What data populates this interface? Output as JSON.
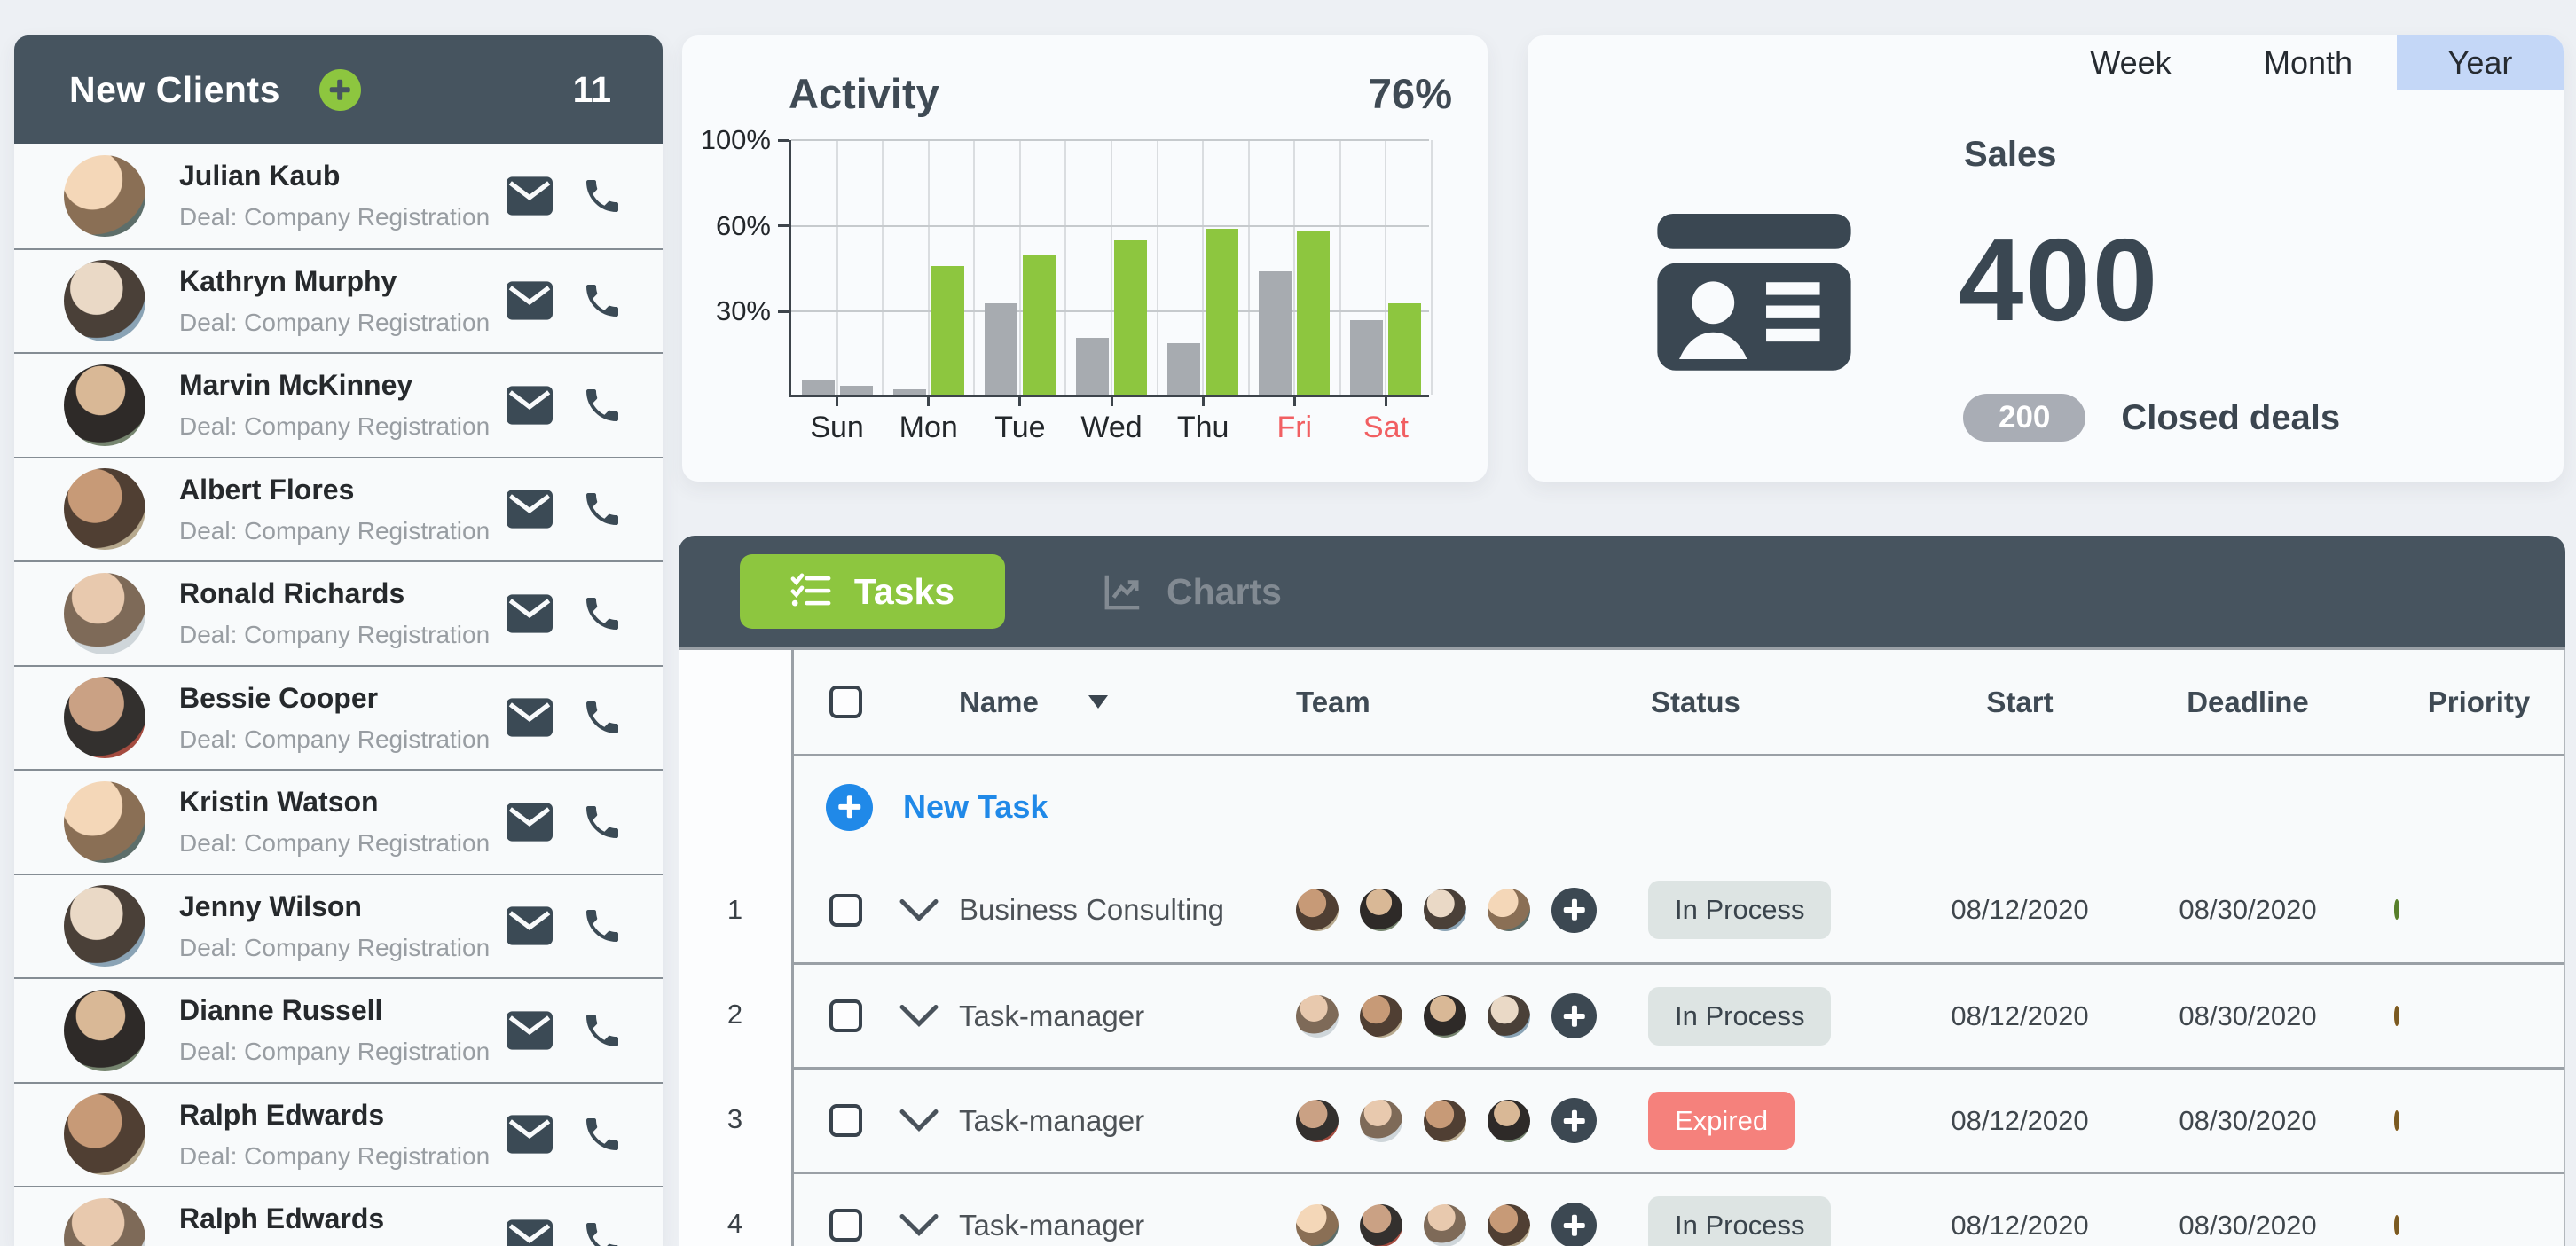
{
  "theme": {
    "dark_slate": "#46545f",
    "accent_green": "#8dc63f",
    "accent_blue": "#2089e8",
    "active_tab_blue": "#c4d7f7",
    "expired_red": "#f5817c",
    "weekend_red": "#f15f62",
    "priority_orange": "#f7941d",
    "priority_green": "#8cc63e",
    "gray_bar": "#a7abb0",
    "page_bg": "#edf0f4"
  },
  "sidebar": {
    "title": "New Clients",
    "count": "11",
    "deal_label": "Deal: Company Registration",
    "clients": [
      {
        "name": "Julian Kaub"
      },
      {
        "name": "Kathryn Murphy"
      },
      {
        "name": "Marvin McKinney"
      },
      {
        "name": "Albert Flores"
      },
      {
        "name": "Ronald Richards"
      },
      {
        "name": "Bessie Cooper"
      },
      {
        "name": "Kristin Watson"
      },
      {
        "name": "Jenny Wilson"
      },
      {
        "name": "Dianne Russell"
      },
      {
        "name": "Ralph Edwards"
      },
      {
        "name": "Ralph Edwards"
      }
    ]
  },
  "activity": {
    "title": "Activity",
    "value": "76%"
  },
  "chart_data": {
    "type": "bar",
    "title": "Activity",
    "annotation": "76%",
    "categories": [
      "Sun",
      "Mon",
      "Tue",
      "Wed",
      "Thu",
      "Fri",
      "Sat"
    ],
    "category_colors": [
      "#23272b",
      "#23272b",
      "#23272b",
      "#23272b",
      "#23272b",
      "#f15f62",
      "#f15f62"
    ],
    "series": [
      {
        "name": "secondary",
        "color": "#a7abb0",
        "values": [
          5,
          2,
          32,
          20,
          18,
          43,
          26
        ]
      },
      {
        "name": "primary",
        "color": "#8dc63f",
        "values": [
          3,
          45,
          49,
          54,
          58,
          57,
          32
        ],
        "point_colors": [
          "#a7abb0",
          null,
          null,
          null,
          null,
          null,
          null
        ]
      }
    ],
    "ylim": [
      0,
      100
    ],
    "y_ticks": [
      "30%",
      "60%",
      "100%"
    ],
    "y_scale_note": "non-linear: 0-30, 30-60, 60-100 occupy equal thirds of plot height",
    "grid": true,
    "legend": false
  },
  "sales": {
    "tabs": [
      {
        "label": "Week",
        "active": false
      },
      {
        "label": "Month",
        "active": false
      },
      {
        "label": "Year",
        "active": true
      }
    ],
    "label": "Sales",
    "value": "400",
    "badge": "200",
    "badge_label": "Closed deals"
  },
  "tasks": {
    "tabs": {
      "tasks": "Tasks",
      "charts": "Charts"
    },
    "new_task": "New Task",
    "columns": {
      "name": "Name",
      "team": "Team",
      "status": "Status",
      "start": "Start",
      "deadline": "Deadline",
      "priority": "Priority"
    },
    "rows": [
      {
        "num": "1",
        "name": "Business Consulting",
        "team_count": 4,
        "status": "In Process",
        "status_type": "process",
        "start": "08/12/2020",
        "deadline": "08/30/2020",
        "priority": "green"
      },
      {
        "num": "2",
        "name": "Task-manager",
        "team_count": 4,
        "status": "In Process",
        "status_type": "process",
        "start": "08/12/2020",
        "deadline": "08/30/2020",
        "priority": "orange"
      },
      {
        "num": "3",
        "name": "Task-manager",
        "team_count": 4,
        "status": "Expired",
        "status_type": "expired",
        "start": "08/12/2020",
        "deadline": "08/30/2020",
        "priority": "orange"
      },
      {
        "num": "4",
        "name": "Task-manager",
        "team_count": 4,
        "status": "In Process",
        "status_type": "process",
        "start": "08/12/2020",
        "deadline": "08/30/2020",
        "priority": "orange"
      }
    ]
  }
}
